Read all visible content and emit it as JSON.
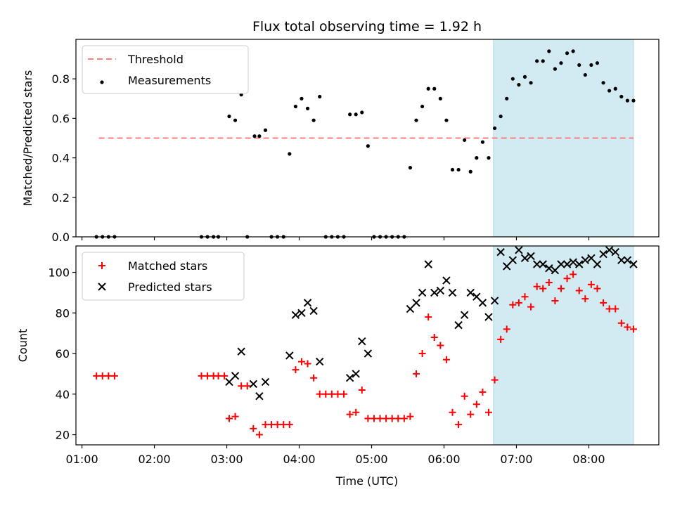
{
  "figure": {
    "title": "Flux total observing time = 1.92 h",
    "xlabel": "Time (UTC)"
  },
  "colors": {
    "highlight_fill": "#add8e6",
    "threshold": "#ff7f7f",
    "measurement": "#000000",
    "matched": "#ff0000",
    "predicted": "#000000"
  },
  "chart_data": [
    {
      "type": "scatter",
      "ylabel": "Matched/Predicted stars",
      "xlim": [
        "00:55",
        "08:58"
      ],
      "ylim": [
        0,
        1.0
      ],
      "yticks": [
        0.0,
        0.2,
        0.4,
        0.6,
        0.8
      ],
      "ytick_labels": [
        "0.0",
        "0.2",
        "0.4",
        "0.6",
        "0.8"
      ],
      "xticks": [
        "01:00",
        "02:00",
        "03:00",
        "04:00",
        "05:00",
        "06:00",
        "07:00",
        "08:00"
      ],
      "show_xtick_labels": false,
      "grid": false,
      "legend_position": "top-left",
      "highlight_span": [
        "06:41",
        "08:37"
      ],
      "threshold": {
        "label": "Threshold",
        "value": 0.5,
        "x_range": [
          "01:14",
          "08:37"
        ]
      },
      "series": [
        {
          "name": "Measurements",
          "marker": "dot",
          "points": [
            [
              "01:12",
              0.0
            ],
            [
              "01:17",
              0.0
            ],
            [
              "01:22",
              0.0
            ],
            [
              "01:27",
              0.0
            ],
            [
              "02:39",
              0.0
            ],
            [
              "02:44",
              0.0
            ],
            [
              "02:49",
              0.0
            ],
            [
              "02:53",
              0.0
            ],
            [
              "03:02",
              0.61
            ],
            [
              "03:07",
              0.59
            ],
            [
              "03:12",
              0.72
            ],
            [
              "03:17",
              0.0
            ],
            [
              "03:23",
              0.51
            ],
            [
              "03:27",
              0.51
            ],
            [
              "03:32",
              0.54
            ],
            [
              "03:37",
              0.0
            ],
            [
              "03:42",
              0.0
            ],
            [
              "03:47",
              0.0
            ],
            [
              "03:52",
              0.42
            ],
            [
              "03:57",
              0.66
            ],
            [
              "04:02",
              0.7
            ],
            [
              "04:07",
              0.65
            ],
            [
              "04:12",
              0.59
            ],
            [
              "04:17",
              0.71
            ],
            [
              "04:22",
              0.0
            ],
            [
              "04:27",
              0.0
            ],
            [
              "04:32",
              0.0
            ],
            [
              "04:37",
              0.0
            ],
            [
              "04:42",
              0.62
            ],
            [
              "04:47",
              0.62
            ],
            [
              "04:52",
              0.63
            ],
            [
              "04:57",
              0.46
            ],
            [
              "05:02",
              0.0
            ],
            [
              "05:07",
              0.0
            ],
            [
              "05:12",
              0.0
            ],
            [
              "05:17",
              0.0
            ],
            [
              "05:22",
              0.0
            ],
            [
              "05:27",
              0.0
            ],
            [
              "05:32",
              0.35
            ],
            [
              "05:37",
              0.59
            ],
            [
              "05:42",
              0.66
            ],
            [
              "05:47",
              0.75
            ],
            [
              "05:52",
              0.75
            ],
            [
              "05:57",
              0.7
            ],
            [
              "06:02",
              0.59
            ],
            [
              "06:07",
              0.34
            ],
            [
              "06:12",
              0.34
            ],
            [
              "06:17",
              0.49
            ],
            [
              "06:22",
              0.33
            ],
            [
              "06:27",
              0.4
            ],
            [
              "06:32",
              0.48
            ],
            [
              "06:37",
              0.4
            ],
            [
              "06:42",
              0.55
            ],
            [
              "06:47",
              0.61
            ],
            [
              "06:52",
              0.7
            ],
            [
              "06:57",
              0.8
            ],
            [
              "07:02",
              0.77
            ],
            [
              "07:07",
              0.81
            ],
            [
              "07:12",
              0.78
            ],
            [
              "07:17",
              0.89
            ],
            [
              "07:22",
              0.89
            ],
            [
              "07:27",
              0.94
            ],
            [
              "07:32",
              0.85
            ],
            [
              "07:37",
              0.88
            ],
            [
              "07:42",
              0.93
            ],
            [
              "07:47",
              0.94
            ],
            [
              "07:52",
              0.87
            ],
            [
              "07:57",
              0.82
            ],
            [
              "08:02",
              0.87
            ],
            [
              "08:07",
              0.88
            ],
            [
              "08:12",
              0.78
            ],
            [
              "08:17",
              0.74
            ],
            [
              "08:22",
              0.75
            ],
            [
              "08:27",
              0.71
            ],
            [
              "08:32",
              0.69
            ],
            [
              "08:37",
              0.69
            ]
          ]
        }
      ]
    },
    {
      "type": "scatter",
      "ylabel": "Count",
      "xlim": [
        "00:55",
        "08:58"
      ],
      "ylim": [
        15,
        113
      ],
      "yticks": [
        20,
        40,
        60,
        80,
        100
      ],
      "ytick_labels": [
        "20",
        "40",
        "60",
        "80",
        "100"
      ],
      "xticks": [
        "01:00",
        "02:00",
        "03:00",
        "04:00",
        "05:00",
        "06:00",
        "07:00",
        "08:00"
      ],
      "xtick_labels": [
        "01:00",
        "02:00",
        "03:00",
        "04:00",
        "05:00",
        "06:00",
        "07:00",
        "08:00"
      ],
      "grid": false,
      "legend_position": "top-left",
      "highlight_span": [
        "06:41",
        "08:37"
      ],
      "series": [
        {
          "name": "Matched stars",
          "marker": "plus",
          "points": [
            [
              "01:12",
              49
            ],
            [
              "01:17",
              49
            ],
            [
              "01:22",
              49
            ],
            [
              "01:27",
              49
            ],
            [
              "02:39",
              49
            ],
            [
              "02:44",
              49
            ],
            [
              "02:49",
              49
            ],
            [
              "02:53",
              49
            ],
            [
              "02:58",
              49
            ],
            [
              "03:02",
              28
            ],
            [
              "03:07",
              29
            ],
            [
              "03:12",
              44
            ],
            [
              "03:17",
              44
            ],
            [
              "03:22",
              23
            ],
            [
              "03:27",
              20
            ],
            [
              "03:32",
              25
            ],
            [
              "03:37",
              25
            ],
            [
              "03:42",
              25
            ],
            [
              "03:47",
              25
            ],
            [
              "03:52",
              25
            ],
            [
              "03:57",
              52
            ],
            [
              "04:02",
              56
            ],
            [
              "04:07",
              55
            ],
            [
              "04:12",
              48
            ],
            [
              "04:17",
              40
            ],
            [
              "04:22",
              40
            ],
            [
              "04:27",
              40
            ],
            [
              "04:32",
              40
            ],
            [
              "04:37",
              40
            ],
            [
              "04:42",
              30
            ],
            [
              "04:47",
              31
            ],
            [
              "04:52",
              42
            ],
            [
              "04:57",
              28
            ],
            [
              "05:02",
              28
            ],
            [
              "05:07",
              28
            ],
            [
              "05:12",
              28
            ],
            [
              "05:17",
              28
            ],
            [
              "05:22",
              28
            ],
            [
              "05:27",
              28
            ],
            [
              "05:32",
              29
            ],
            [
              "05:37",
              50
            ],
            [
              "05:42",
              60
            ],
            [
              "05:47",
              78
            ],
            [
              "05:52",
              68
            ],
            [
              "05:57",
              64
            ],
            [
              "06:02",
              57
            ],
            [
              "06:07",
              31
            ],
            [
              "06:12",
              25
            ],
            [
              "06:17",
              39
            ],
            [
              "06:22",
              30
            ],
            [
              "06:27",
              35
            ],
            [
              "06:32",
              41
            ],
            [
              "06:37",
              31
            ],
            [
              "06:42",
              47
            ],
            [
              "06:47",
              67
            ],
            [
              "06:52",
              72
            ],
            [
              "06:57",
              84
            ],
            [
              "07:02",
              85
            ],
            [
              "07:07",
              88
            ],
            [
              "07:12",
              83
            ],
            [
              "07:17",
              93
            ],
            [
              "07:22",
              92
            ],
            [
              "07:27",
              95
            ],
            [
              "07:32",
              86
            ],
            [
              "07:37",
              92
            ],
            [
              "07:42",
              97
            ],
            [
              "07:47",
              99
            ],
            [
              "07:52",
              91
            ],
            [
              "07:57",
              87
            ],
            [
              "08:02",
              94
            ],
            [
              "08:07",
              92
            ],
            [
              "08:12",
              85
            ],
            [
              "08:17",
              82
            ],
            [
              "08:22",
              82
            ],
            [
              "08:27",
              75
            ],
            [
              "08:32",
              73
            ],
            [
              "08:37",
              72
            ]
          ]
        },
        {
          "name": "Predicted stars",
          "marker": "x",
          "points": [
            [
              "03:02",
              46
            ],
            [
              "03:07",
              49
            ],
            [
              "03:12",
              61
            ],
            [
              "03:22",
              45
            ],
            [
              "03:27",
              39
            ],
            [
              "03:32",
              46
            ],
            [
              "03:52",
              59
            ],
            [
              "03:57",
              79
            ],
            [
              "04:02",
              80
            ],
            [
              "04:07",
              85
            ],
            [
              "04:12",
              81
            ],
            [
              "04:17",
              56
            ],
            [
              "04:42",
              48
            ],
            [
              "04:47",
              50
            ],
            [
              "04:52",
              66
            ],
            [
              "04:57",
              60
            ],
            [
              "05:32",
              82
            ],
            [
              "05:37",
              85
            ],
            [
              "05:42",
              90
            ],
            [
              "05:47",
              104
            ],
            [
              "05:52",
              90
            ],
            [
              "05:57",
              91
            ],
            [
              "06:02",
              96
            ],
            [
              "06:07",
              90
            ],
            [
              "06:12",
              74
            ],
            [
              "06:17",
              79
            ],
            [
              "06:22",
              90
            ],
            [
              "06:27",
              88
            ],
            [
              "06:32",
              85
            ],
            [
              "06:37",
              78
            ],
            [
              "06:42",
              86
            ],
            [
              "06:47",
              110
            ],
            [
              "06:52",
              103
            ],
            [
              "06:57",
              106
            ],
            [
              "07:02",
              111
            ],
            [
              "07:07",
              107
            ],
            [
              "07:12",
              108
            ],
            [
              "07:17",
              104
            ],
            [
              "07:22",
              104
            ],
            [
              "07:27",
              102
            ],
            [
              "07:32",
              101
            ],
            [
              "07:37",
              104
            ],
            [
              "07:42",
              104
            ],
            [
              "07:47",
              105
            ],
            [
              "07:52",
              104
            ],
            [
              "07:57",
              106
            ],
            [
              "08:02",
              107
            ],
            [
              "08:07",
              104
            ],
            [
              "08:12",
              109
            ],
            [
              "08:17",
              111
            ],
            [
              "08:22",
              110
            ],
            [
              "08:27",
              106
            ],
            [
              "08:32",
              106
            ],
            [
              "08:37",
              104
            ]
          ]
        }
      ]
    }
  ]
}
